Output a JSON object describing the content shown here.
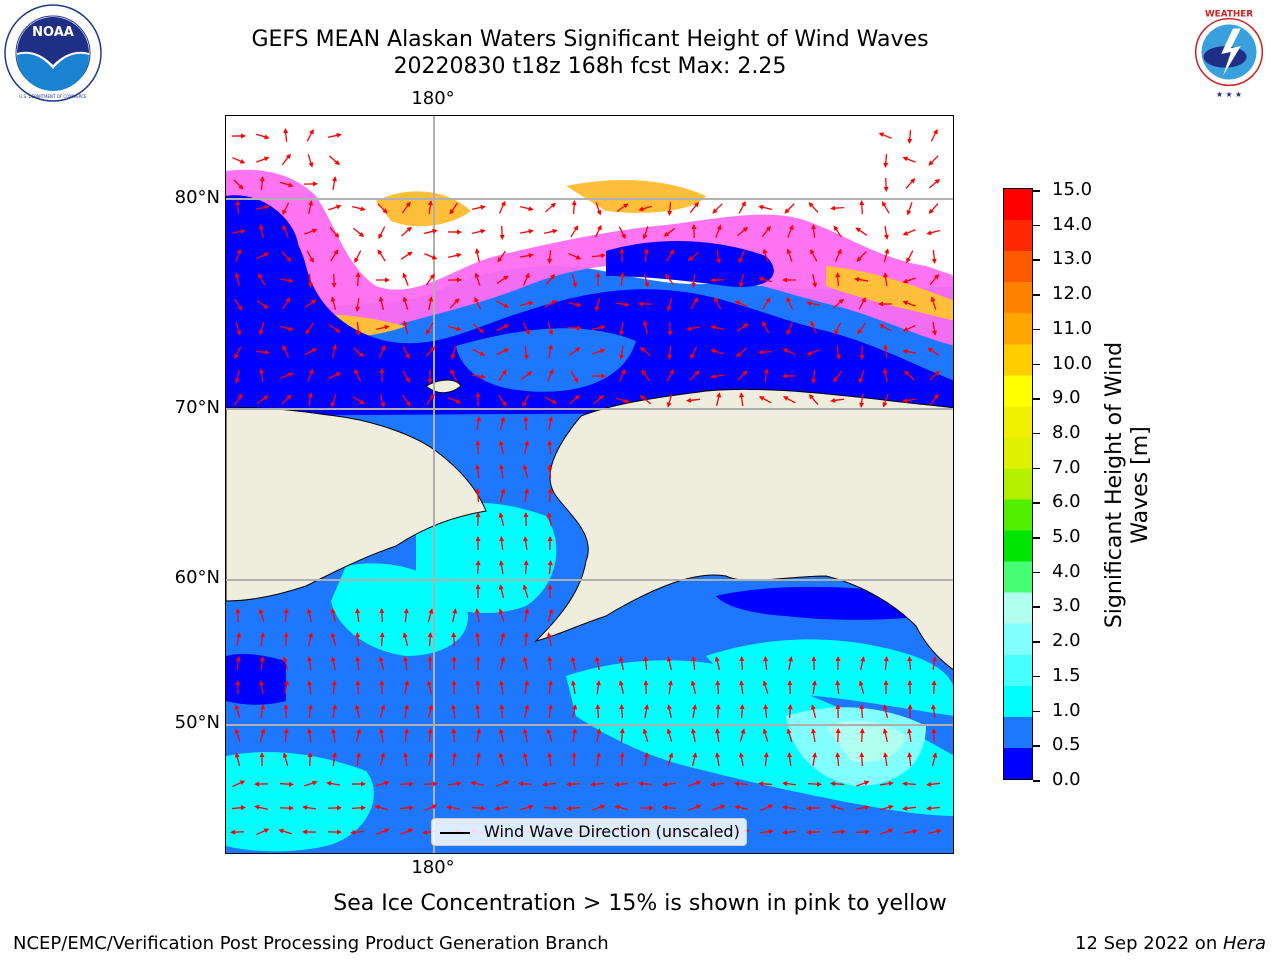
{
  "header": {
    "title_line1": "GEFS MEAN Alaskan Waters Significant Height of Wind Waves",
    "title_line2": "20220830 t18z 168h fcst   Max: 2.25"
  },
  "logos": {
    "left": {
      "name": "NOAA logo",
      "text": "NOAA",
      "ring_text": "NATIONAL OCEANIC AND ATMOSPHERIC ADMINISTRATION · U.S. DEPARTMENT OF COMMERCE"
    },
    "right": {
      "name": "National Weather Service logo",
      "ring_text": "NATIONAL WEATHER SERVICE"
    }
  },
  "map": {
    "lon_label_top": "180°",
    "lon_label_bottom": "180°",
    "lat_labels": [
      "80°N",
      "70°N",
      "60°N",
      "50°N"
    ],
    "colors": {
      "land": "#efedde",
      "ice_low": "#ff6df2",
      "ice_high": "#ffbf3a",
      "arrows": "#ff0000",
      "grid": "#b0b0b0"
    }
  },
  "legend": {
    "label": "Wind Wave Direction (unscaled)"
  },
  "colorbar": {
    "label": "Significant Height of Wind Waves [m]",
    "ticks": [
      "15.0",
      "14.0",
      "13.0",
      "12.0",
      "11.0",
      "10.0",
      "9.0",
      "8.0",
      "7.0",
      "6.0",
      "5.0",
      "4.0",
      "3.0",
      "2.0",
      "1.5",
      "1.0",
      "0.5",
      "0.0"
    ],
    "colors_bottom_to_top": [
      "#0000ff",
      "#1e78ff",
      "#00ffff",
      "#48ffff",
      "#82ffff",
      "#b0fff0",
      "#46ff73",
      "#00e600",
      "#50f000",
      "#b4f000",
      "#dcf000",
      "#f0f000",
      "#ffff00",
      "#ffcd00",
      "#ffa500",
      "#ff8200",
      "#ff5a00",
      "#ff2800",
      "#ff0000"
    ]
  },
  "footer": {
    "subtitle": "Sea Ice Concentration > 15% is shown in pink to yellow",
    "left": "NCEP/EMC/Verification Post Processing Product Generation Branch",
    "right_date": "12 Sep 2022 on ",
    "right_host": "Hera"
  }
}
